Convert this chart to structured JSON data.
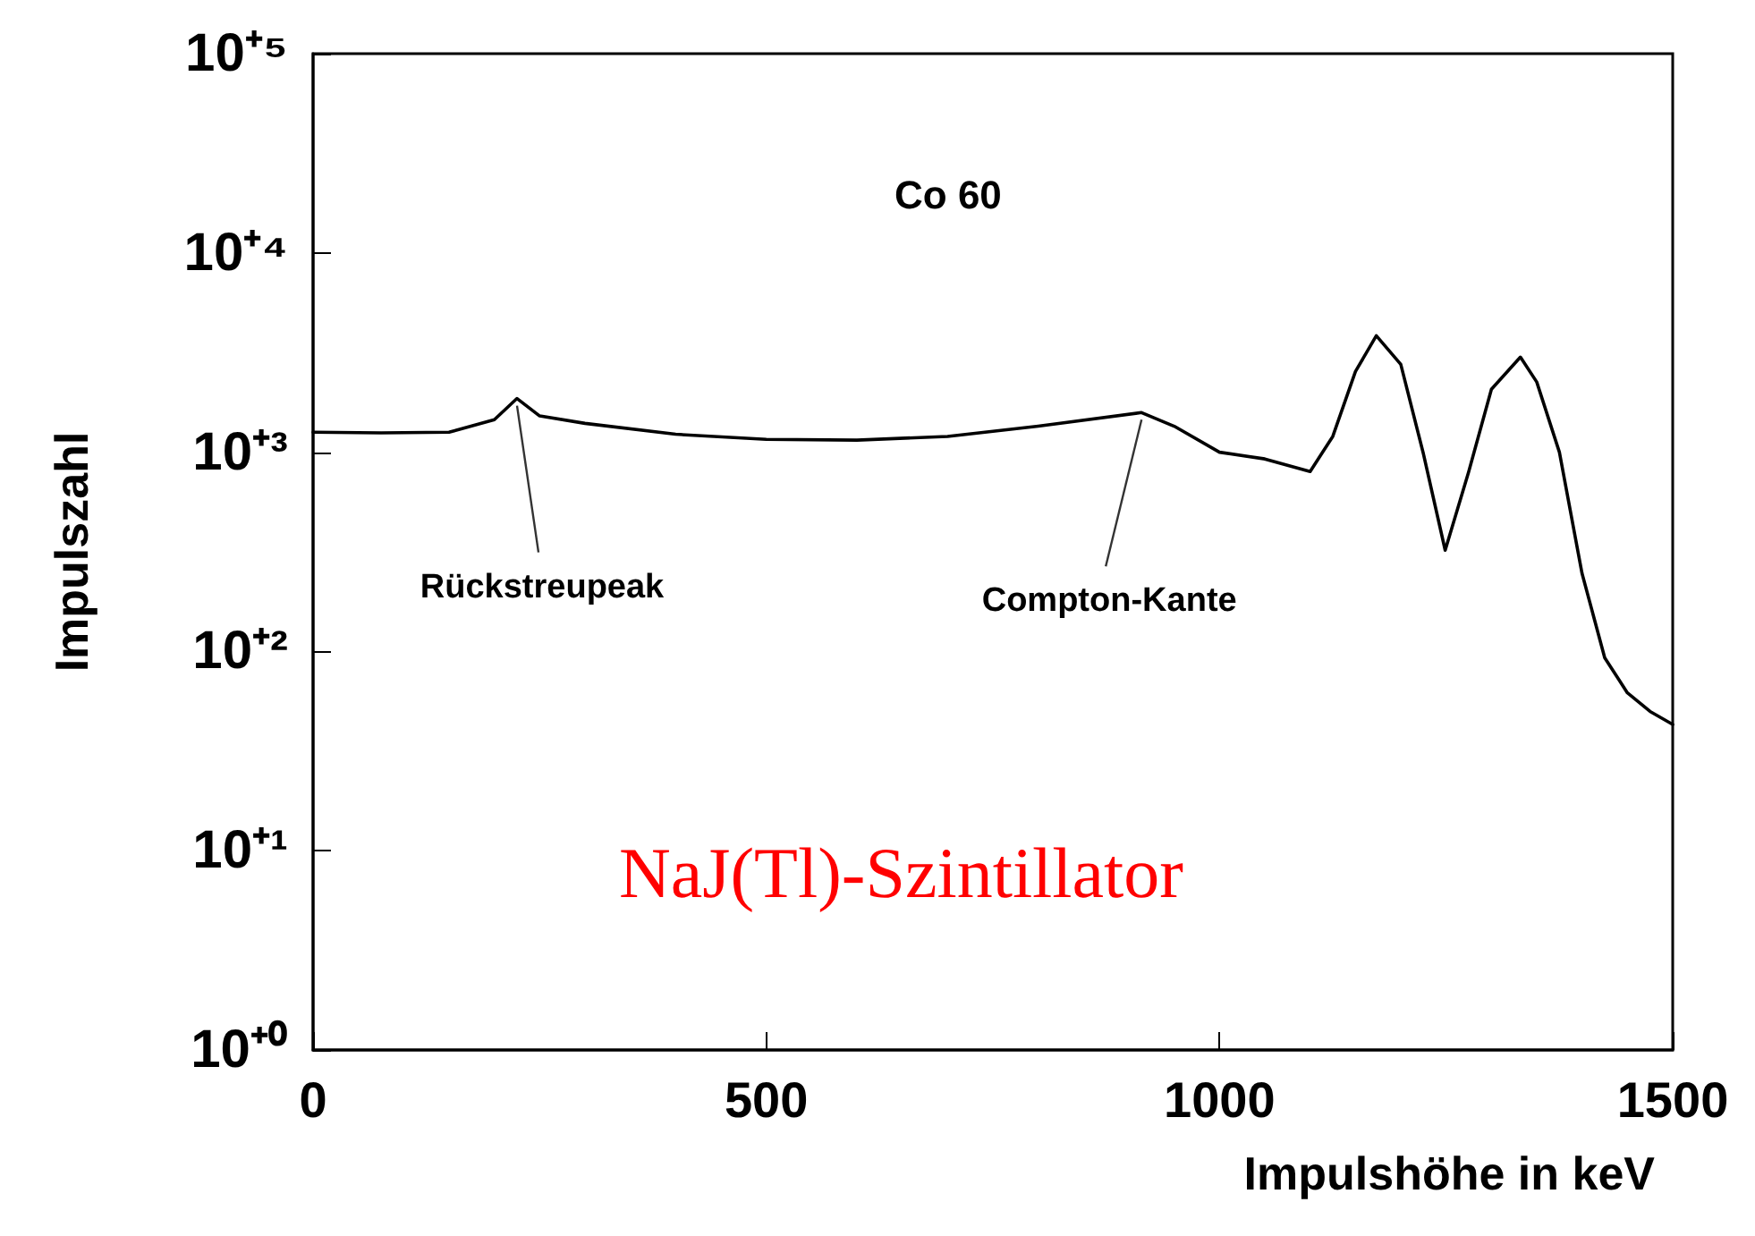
{
  "chart_data": {
    "type": "line",
    "xlabel": "Impulshöhe in keV",
    "ylabel": "Impulszahl",
    "x": [
      0,
      75,
      150,
      200,
      225,
      250,
      300,
      400,
      500,
      600,
      700,
      800,
      914,
      950,
      1000,
      1050,
      1100,
      1125,
      1150,
      1173,
      1200,
      1225,
      1249,
      1275,
      1300,
      1332,
      1350,
      1375,
      1400,
      1425,
      1450,
      1475,
      1500
    ],
    "series": [
      {
        "color": "#000000",
        "values": [
          1260,
          1250,
          1260,
          1456,
          1860,
          1520,
          1395,
          1230,
          1160,
          1150,
          1200,
          1350,
          1580,
          1350,
          1000,
          925,
          800,
          1200,
          2540,
          3840,
          2760,
          980,
          322,
          800,
          2070,
          3000,
          2250,
          1000,
          246,
          93,
          62,
          50,
          43
        ]
      }
    ],
    "log": "y",
    "xlim": [
      0,
      1500
    ],
    "xticks": [
      0,
      500,
      1000,
      1500
    ],
    "ylim": [
      1,
      100000
    ],
    "yticks": [
      {
        "value": 1,
        "label": "10⁺⁰"
      },
      {
        "value": 10,
        "label": "10⁺¹"
      },
      {
        "value": 100,
        "label": "10⁺²"
      },
      {
        "value": 1000,
        "label": "10⁺³"
      },
      {
        "value": 10000,
        "label": "10⁺⁴"
      },
      {
        "value": 100000,
        "label": "10⁺⁵"
      }
    ],
    "grid": false,
    "marker": "none",
    "line_style": "solid",
    "annotations": [
      "Co 60",
      {
        "text": "Rückstreupeak",
        "x": 225,
        "y": 1860
      },
      {
        "text": "Compton-Kante",
        "x": 914,
        "y": 1580
      },
      "NaJ(Tl)-Szintillator"
    ]
  }
}
